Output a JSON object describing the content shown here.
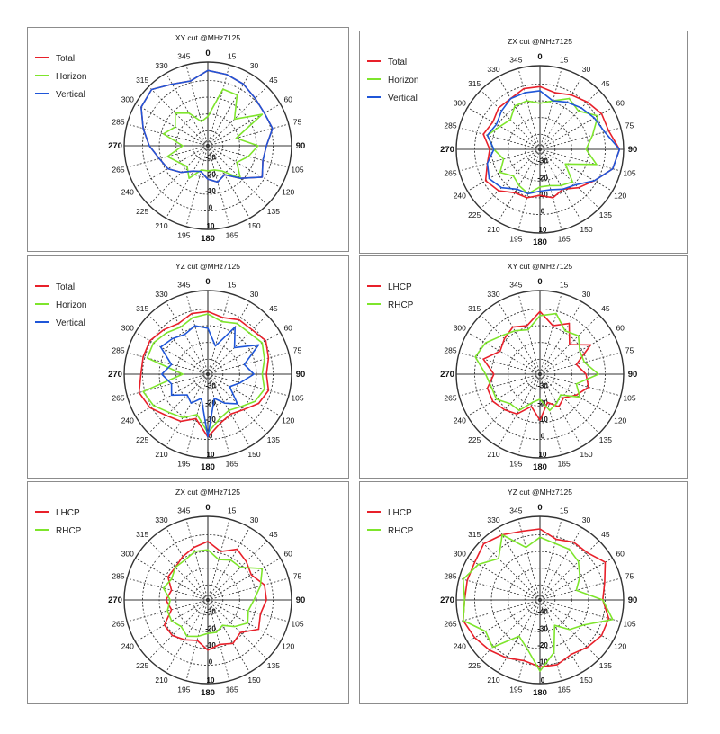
{
  "colors": {
    "Total": "#e8202a",
    "Horizon": "#7ee52c",
    "Vertical": "#1f56d8",
    "LHCP": "#e8202a",
    "RHCP": "#7ee52c",
    "grid": "#333333"
  },
  "chart_data": [
    {
      "type": "polar-line",
      "title": "XY cut @MHz7125",
      "radial_ticks": [
        "-30",
        "-20",
        "-10",
        "0",
        "10"
      ],
      "angle_labels": [
        "0",
        "15",
        "30",
        "45",
        "60",
        "75",
        "90",
        "105",
        "120",
        "135",
        "150",
        "165",
        "180",
        "195",
        "210",
        "225",
        "240",
        "265",
        "270",
        "285",
        "300",
        "315",
        "330",
        "345"
      ],
      "series": [
        {
          "name": "Total",
          "values": [
            0.9,
            0.88,
            0.85,
            0.8,
            0.78,
            0.8,
            0.7,
            0.68,
            0.75,
            0.55,
            0.4,
            0.45,
            0.4,
            0.32,
            0.35,
            0.45,
            0.55,
            0.6,
            0.7,
            0.8,
            0.92,
            0.95,
            0.85,
            0.8
          ]
        },
        {
          "name": "Horizon",
          "values": [
            0.35,
            0.7,
            0.7,
            0.45,
            0.75,
            0.35,
            0.6,
            0.5,
            0.4,
            0.55,
            0.35,
            0.3,
            0.3,
            0.3,
            0.45,
            0.35,
            0.4,
            0.5,
            0.3,
            0.55,
            0.45,
            0.55,
            0.45,
            0.3
          ]
        },
        {
          "name": "Vertical",
          "values": [
            0.9,
            0.88,
            0.85,
            0.8,
            0.78,
            0.8,
            0.7,
            0.68,
            0.75,
            0.55,
            0.4,
            0.45,
            0.4,
            0.32,
            0.35,
            0.45,
            0.55,
            0.6,
            0.7,
            0.8,
            0.92,
            0.95,
            0.85,
            0.8
          ]
        }
      ]
    },
    {
      "type": "polar-line",
      "title": "ZX cut @MHz7125",
      "radial_ticks": [
        "-30",
        "-20",
        "-10",
        "0",
        "10"
      ],
      "angle_labels": [
        "0",
        "15",
        "30",
        "45",
        "60",
        "75",
        "90",
        "105",
        "120",
        "135",
        "150",
        "165",
        "180",
        "195",
        "210",
        "225",
        "240",
        "265",
        "270",
        "285",
        "300",
        "315",
        "330",
        "345"
      ],
      "series": [
        {
          "name": "Total",
          "values": [
            0.75,
            0.7,
            0.75,
            0.8,
            0.85,
            0.85,
            0.95,
            0.9,
            0.75,
            0.65,
            0.55,
            0.6,
            0.55,
            0.6,
            0.6,
            0.7,
            0.75,
            0.65,
            0.6,
            0.7,
            0.65,
            0.7,
            0.7,
            0.75
          ]
        },
        {
          "name": "Horizon",
          "values": [
            0.55,
            0.6,
            0.7,
            0.65,
            0.8,
            0.65,
            0.55,
            0.7,
            0.35,
            0.55,
            0.5,
            0.45,
            0.45,
            0.55,
            0.5,
            0.45,
            0.55,
            0.45,
            0.55,
            0.65,
            0.55,
            0.5,
            0.6,
            0.6
          ]
        },
        {
          "name": "Vertical",
          "values": [
            0.7,
            0.6,
            0.65,
            0.7,
            0.75,
            0.8,
            0.95,
            0.9,
            0.75,
            0.6,
            0.55,
            0.5,
            0.5,
            0.55,
            0.55,
            0.65,
            0.7,
            0.65,
            0.55,
            0.65,
            0.6,
            0.65,
            0.7,
            0.7
          ]
        }
      ]
    },
    {
      "type": "polar-line",
      "title": "YZ cut @MHz7125",
      "radial_ticks": [
        "-30",
        "-20",
        "-10",
        "0",
        "10"
      ],
      "angle_labels": [
        "0",
        "15",
        "30",
        "45",
        "60",
        "75",
        "90",
        "105",
        "120",
        "135",
        "150",
        "165",
        "180",
        "195",
        "210",
        "225",
        "240",
        "265",
        "270",
        "285",
        "300",
        "315",
        "330",
        "345"
      ],
      "series": [
        {
          "name": "Total",
          "values": [
            0.75,
            0.7,
            0.75,
            0.75,
            0.8,
            0.75,
            0.7,
            0.75,
            0.7,
            0.6,
            0.55,
            0.6,
            0.75,
            0.55,
            0.65,
            0.7,
            0.8,
            0.85,
            0.8,
            0.8,
            0.8,
            0.75,
            0.7,
            0.75
          ]
        },
        {
          "name": "Horizon",
          "values": [
            0.72,
            0.65,
            0.7,
            0.7,
            0.75,
            0.7,
            0.65,
            0.7,
            0.65,
            0.55,
            0.5,
            0.55,
            0.7,
            0.5,
            0.6,
            0.65,
            0.75,
            0.8,
            0.3,
            0.75,
            0.75,
            0.7,
            0.65,
            0.7
          ]
        },
        {
          "name": "Vertical",
          "values": [
            0.55,
            0.35,
            0.65,
            0.45,
            0.7,
            0.45,
            0.55,
            0.4,
            0.3,
            0.5,
            0.4,
            0.3,
            0.75,
            0.3,
            0.4,
            0.35,
            0.5,
            0.45,
            0.55,
            0.45,
            0.65,
            0.6,
            0.55,
            0.6
          ]
        }
      ]
    },
    {
      "type": "polar-line",
      "title": "XY cut @MHz7125",
      "radial_ticks": [
        "-30",
        "-20",
        "-10",
        "0",
        "10"
      ],
      "angle_labels": [
        "0",
        "15",
        "30",
        "45",
        "60",
        "75",
        "90",
        "105",
        "120",
        "135",
        "150",
        "165",
        "180",
        "195",
        "210",
        "225",
        "240",
        "265",
        "270",
        "285",
        "300",
        "315",
        "330",
        "345"
      ],
      "series": [
        {
          "name": "LHCP",
          "values": [
            0.75,
            0.6,
            0.7,
            0.5,
            0.7,
            0.45,
            0.55,
            0.6,
            0.5,
            0.4,
            0.45,
            0.35,
            0.55,
            0.4,
            0.55,
            0.6,
            0.65,
            0.65,
            0.55,
            0.7,
            0.55,
            0.6,
            0.65,
            0.6
          ]
        },
        {
          "name": "RHCP",
          "values": [
            0.7,
            0.75,
            0.6,
            0.65,
            0.55,
            0.55,
            0.7,
            0.45,
            0.55,
            0.35,
            0.4,
            0.45,
            0.3,
            0.35,
            0.5,
            0.5,
            0.6,
            0.6,
            0.65,
            0.8,
            0.75,
            0.65,
            0.6,
            0.55
          ]
        }
      ]
    },
    {
      "type": "polar-line",
      "title": "ZX cut @MHz7125",
      "radial_ticks": [
        "-30",
        "-20",
        "-10",
        "0",
        "10"
      ],
      "angle_labels": [
        "0",
        "15",
        "30",
        "45",
        "60",
        "75",
        "90",
        "105",
        "120",
        "135",
        "150",
        "165",
        "180",
        "195",
        "210",
        "225",
        "240",
        "265",
        "270",
        "285",
        "300",
        "315",
        "330",
        "345"
      ],
      "series": [
        {
          "name": "LHCP",
          "values": [
            0.7,
            0.6,
            0.7,
            0.65,
            0.6,
            0.7,
            0.7,
            0.65,
            0.7,
            0.55,
            0.6,
            0.55,
            0.6,
            0.5,
            0.55,
            0.6,
            0.6,
            0.45,
            0.5,
            0.45,
            0.55,
            0.55,
            0.6,
            0.65
          ]
        },
        {
          "name": "RHCP",
          "values": [
            0.6,
            0.5,
            0.55,
            0.55,
            0.75,
            0.65,
            0.55,
            0.5,
            0.55,
            0.45,
            0.35,
            0.4,
            0.4,
            0.45,
            0.5,
            0.45,
            0.5,
            0.5,
            0.45,
            0.55,
            0.5,
            0.55,
            0.55,
            0.6
          ]
        }
      ]
    },
    {
      "type": "polar-line",
      "title": "YZ cut @MHz7125",
      "radial_ticks": [
        "-40",
        "-30",
        "-20",
        "-10",
        "0"
      ],
      "angle_labels": [
        "0",
        "15",
        "30",
        "45",
        "60",
        "75",
        "90",
        "105",
        "120",
        "135",
        "150",
        "165",
        "180",
        "195",
        "210",
        "225",
        "240",
        "265",
        "270",
        "285",
        "300",
        "315",
        "330",
        "345"
      ],
      "series": [
        {
          "name": "LHCP",
          "values": [
            0.85,
            0.75,
            0.8,
            0.8,
            0.9,
            0.8,
            0.75,
            0.85,
            0.85,
            0.8,
            0.75,
            0.8,
            0.8,
            0.75,
            0.8,
            0.85,
            0.9,
            0.95,
            0.9,
            0.9,
            0.9,
            0.95,
            0.9,
            0.85
          ]
        },
        {
          "name": "RHCP",
          "values": [
            0.75,
            0.7,
            0.7,
            0.65,
            0.55,
            0.45,
            0.75,
            0.9,
            0.6,
            0.5,
            0.35,
            0.65,
            0.85,
            0.6,
            0.5,
            0.8,
            0.75,
            0.95,
            0.9,
            0.95,
            0.85,
            0.7,
            0.9,
            0.65
          ]
        }
      ]
    }
  ]
}
